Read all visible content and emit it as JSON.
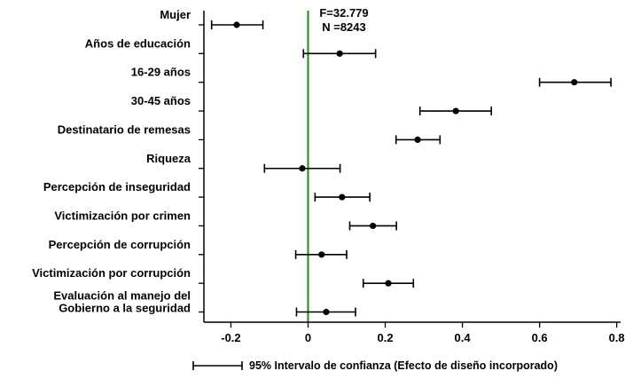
{
  "chart_data": {
    "type": "scatter",
    "subtype": "coefficient-plot-horizontal-error-bars",
    "categories": [
      "Mujer",
      "Años de educación",
      "16-29 años",
      "30-45 años",
      "Destinatario de remesas",
      "Riqueza",
      "Percepción de inseguridad",
      "Victimización por crimen",
      "Percepción de corrupción",
      "Victimización por corrupción",
      "Evaluación al manejo del Gobierno a la seguridad"
    ],
    "category_lines": [
      [
        "Mujer"
      ],
      [
        "Años de educación"
      ],
      [
        "16-29 años"
      ],
      [
        "30-45 años"
      ],
      [
        "Destinatario de remesas"
      ],
      [
        "Riqueza"
      ],
      [
        "Percepción de inseguridad"
      ],
      [
        "Victimización por crimen"
      ],
      [
        "Percepción de corrupción"
      ],
      [
        "Victimización por corrupción"
      ],
      [
        "Evaluación al manejo del",
        "Gobierno a la seguridad"
      ]
    ],
    "estimates": [
      -0.185,
      0.082,
      0.69,
      0.383,
      0.284,
      -0.015,
      0.088,
      0.168,
      0.035,
      0.208,
      0.047
    ],
    "ci_low": [
      -0.25,
      -0.012,
      0.6,
      0.29,
      0.228,
      -0.113,
      0.018,
      0.108,
      -0.032,
      0.143,
      -0.03
    ],
    "ci_high": [
      -0.117,
      0.175,
      0.785,
      0.475,
      0.342,
      0.083,
      0.16,
      0.229,
      0.1,
      0.273,
      0.123
    ],
    "xlim": [
      -0.27,
      0.81
    ],
    "xticks": [
      -0.2,
      0,
      0.2,
      0.4,
      0.6,
      0.8
    ],
    "xtick_labels": [
      "-0.2",
      "0",
      "0.2",
      "0.4",
      "0.6",
      "0.8"
    ],
    "reference_line": {
      "x": 0,
      "color": "#1a8a1a"
    },
    "stats": [
      "F=32.779",
      "N =8243"
    ],
    "legend": {
      "label": "95% Intervalo de confianza (Efecto de diseño incorporado)",
      "placement": "bottom"
    },
    "xlabel": "",
    "ylabel": "",
    "grid": false,
    "colors": {
      "marker": "#000000",
      "errorbar": "#000000",
      "axis": "#000000"
    }
  }
}
